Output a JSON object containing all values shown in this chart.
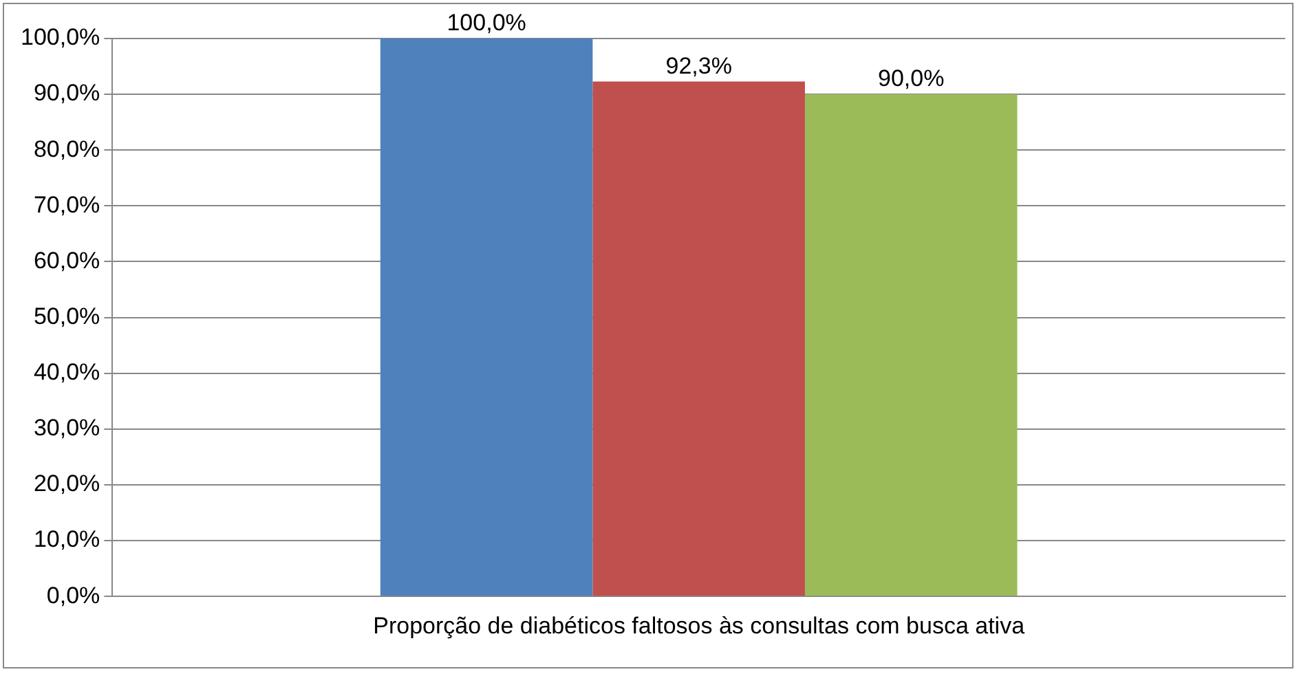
{
  "chart_data": {
    "type": "bar",
    "categories": [
      "Proporção de diabéticos faltosos às consultas com busca ativa"
    ],
    "series": [
      {
        "color": "#4f81bd",
        "values": [
          100
        ],
        "value_labels": [
          "100,0%"
        ]
      },
      {
        "color": "#c0504d",
        "values": [
          92.3
        ],
        "value_labels": [
          "92,3%"
        ]
      },
      {
        "color": "#9bbb59",
        "values": [
          90
        ],
        "value_labels": [
          "90,0%"
        ]
      }
    ],
    "ylim": [
      0,
      100
    ],
    "yticks": [
      {
        "value": 0,
        "label": "0,0%"
      },
      {
        "value": 10,
        "label": "10,0%"
      },
      {
        "value": 20,
        "label": "20,0%"
      },
      {
        "value": 30,
        "label": "30,0%"
      },
      {
        "value": 40,
        "label": "40,0%"
      },
      {
        "value": 50,
        "label": "50,0%"
      },
      {
        "value": 60,
        "label": "60,0%"
      },
      {
        "value": 70,
        "label": "70,0%"
      },
      {
        "value": 80,
        "label": "80,0%"
      },
      {
        "value": 90,
        "label": "90,0%"
      },
      {
        "value": 100,
        "label": "100,0%"
      }
    ],
    "grid": "y",
    "legend": false
  }
}
